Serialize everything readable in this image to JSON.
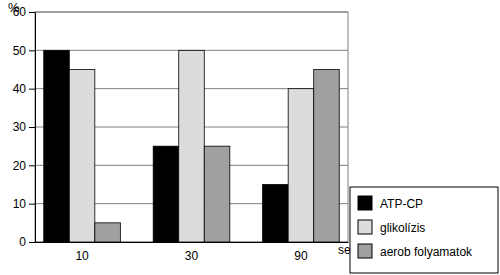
{
  "chart_data": {
    "type": "bar",
    "x_label": "sec.",
    "y_label": "%",
    "categories": [
      "10",
      "30",
      "90"
    ],
    "series": [
      {
        "name": "ATP-CP",
        "color": "#000000",
        "values": [
          50,
          25,
          15
        ]
      },
      {
        "name": "glikolízis",
        "color": "#dcdcdc",
        "values": [
          45,
          50,
          40
        ]
      },
      {
        "name": "aerob folyamatok",
        "color": "#a0a0a0",
        "values": [
          5,
          25,
          45
        ]
      }
    ],
    "ylim": [
      0,
      60
    ],
    "yticks": [
      0,
      10,
      20,
      30,
      40,
      50,
      60
    ],
    "grid": true,
    "legend": "bottom-right"
  }
}
